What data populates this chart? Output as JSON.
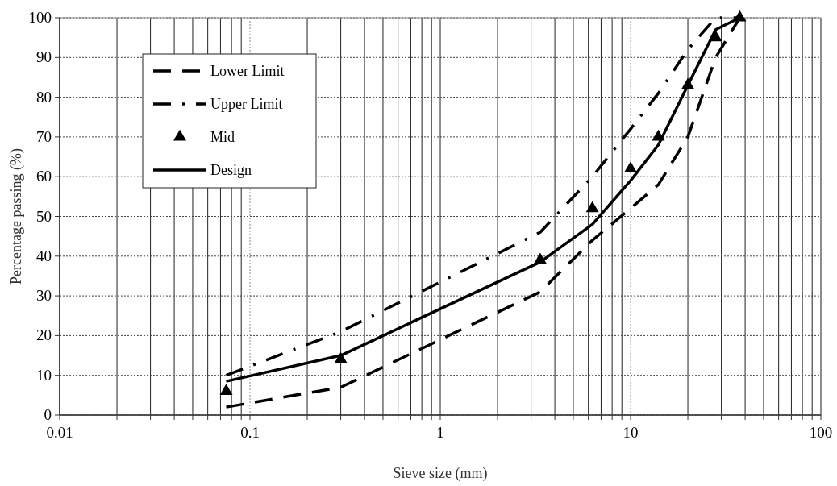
{
  "chart_data": {
    "type": "line",
    "xlabel": "Sieve size (mm)",
    "ylabel": "Percentage passing (%)",
    "log": "x",
    "grid": true,
    "legend": "top left",
    "xlim": [
      0.01,
      100
    ],
    "ylim": [
      0,
      100
    ],
    "xticks": [
      0.01,
      {
        "value": 0.02,
        "label": null
      },
      {
        "value": 0.03,
        "label": null
      },
      {
        "value": 0.04,
        "label": null
      },
      {
        "value": 0.05,
        "label": null
      },
      {
        "value": 0.06,
        "label": null
      },
      {
        "value": 0.07,
        "label": null
      },
      {
        "value": 0.08,
        "label": null
      },
      {
        "value": 0.09,
        "label": null
      },
      0.1,
      {
        "value": 0.2,
        "label": null
      },
      {
        "value": 0.3,
        "label": null
      },
      {
        "value": 0.4,
        "label": null
      },
      {
        "value": 0.5,
        "label": null
      },
      {
        "value": 0.6,
        "label": null
      },
      {
        "value": 0.7,
        "label": null
      },
      {
        "value": 0.8,
        "label": null
      },
      {
        "value": 0.9,
        "label": null
      },
      1,
      {
        "value": 2,
        "label": null
      },
      {
        "value": 3,
        "label": null
      },
      {
        "value": 4,
        "label": null
      },
      {
        "value": 5,
        "label": null
      },
      {
        "value": 6,
        "label": null
      },
      {
        "value": 7,
        "label": null
      },
      {
        "value": 8,
        "label": null
      },
      {
        "value": 9,
        "label": null
      },
      10,
      {
        "value": 20,
        "label": null
      },
      {
        "value": 30,
        "label": null
      },
      {
        "value": 40,
        "label": null
      },
      {
        "value": 50,
        "label": null
      },
      {
        "value": 60,
        "label": null
      },
      {
        "value": 70,
        "label": null
      },
      {
        "value": 80,
        "label": null
      },
      {
        "value": 90,
        "label": null
      },
      100
    ],
    "yticks": [
      0,
      10,
      20,
      30,
      40,
      50,
      60,
      70,
      80,
      90,
      100
    ],
    "x": [
      0.075,
      0.3,
      3.35,
      6.3,
      10,
      14,
      20,
      28,
      37.5
    ],
    "series": [
      {
        "name": "Lower Limit",
        "color": "#000000",
        "line_style": "dashed",
        "values": [
          2,
          7,
          31,
          44,
          52,
          58,
          70,
          90,
          100
        ]
      },
      {
        "name": "Upper Limit",
        "color": "#000000",
        "line_style": "dashdot",
        "values": [
          10,
          21,
          46,
          60,
          72,
          81,
          92,
          100,
          100
        ]
      },
      {
        "name": "Mid",
        "type": "scatter",
        "marker": "triangle",
        "color": "#000000",
        "values": [
          6,
          14,
          39,
          52,
          62,
          70,
          83,
          95,
          100
        ]
      },
      {
        "name": "Design",
        "color": "#000000",
        "line_style": "solid",
        "values": [
          8.5,
          15,
          38.5,
          48,
          59,
          68,
          83,
          97,
          100
        ]
      }
    ]
  }
}
